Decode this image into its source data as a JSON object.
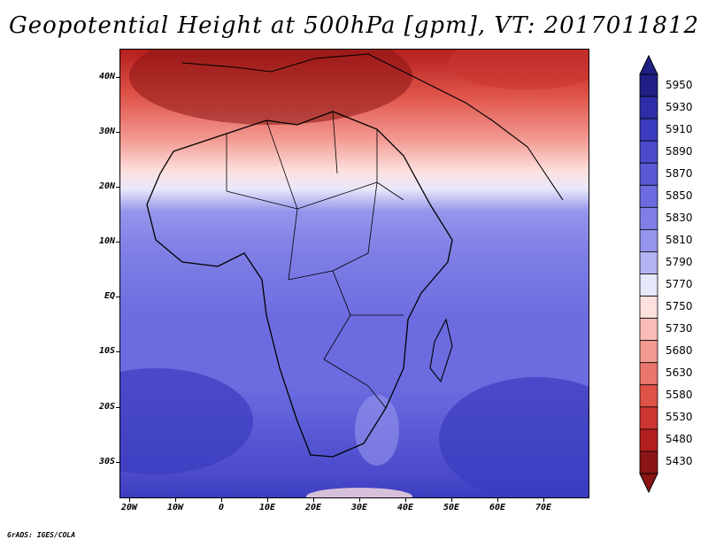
{
  "title": "Geopotential Height at 500hPa [gpm], VT: 2017011812",
  "credit": "GrADS: IGES/COLA",
  "map": {
    "y_labels": [
      "40N",
      "30N",
      "20N",
      "10N",
      "EQ",
      "10S",
      "20S",
      "30S"
    ],
    "x_labels": [
      "20W",
      "10W",
      "0",
      "10E",
      "20E",
      "30E",
      "40E",
      "50E",
      "60E",
      "70E"
    ]
  },
  "colorbar": {
    "levels": [
      "5950",
      "5930",
      "5910",
      "5890",
      "5870",
      "5850",
      "5830",
      "5810",
      "5790",
      "5770",
      "5750",
      "5730",
      "5680",
      "5630",
      "5580",
      "5530",
      "5480",
      "5430"
    ],
    "colors": [
      "#1f1f86",
      "#2e2ea8",
      "#3b3bbf",
      "#4a4acb",
      "#5a5ad6",
      "#6c6ce0",
      "#7f7fe6",
      "#9595ec",
      "#b4b4f2",
      "#e8e8fb",
      "#fde0de",
      "#f9bcb7",
      "#f29a92",
      "#e8766d",
      "#de5248",
      "#cc3530",
      "#b31f1f",
      "#8b1414"
    ]
  }
}
